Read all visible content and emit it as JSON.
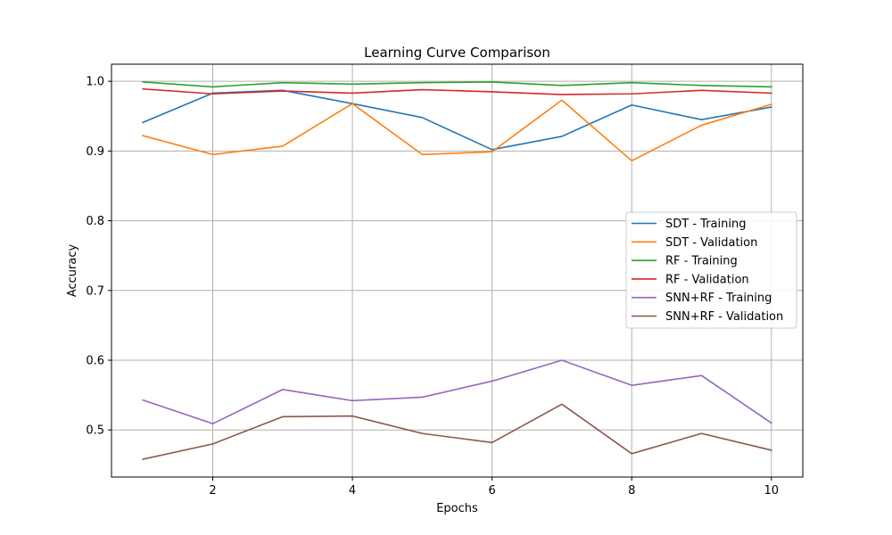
{
  "chart_data": {
    "type": "line",
    "title": "Learning Curve Comparison",
    "xlabel": "Epochs",
    "ylabel": "Accuracy",
    "x": [
      1,
      2,
      3,
      4,
      5,
      6,
      7,
      8,
      9,
      10
    ],
    "xlim": [
      0.55,
      10.45
    ],
    "ylim": [
      0.4325,
      1.0245
    ],
    "xticks": [
      2,
      4,
      6,
      8,
      10
    ],
    "yticks": [
      0.5,
      0.6,
      0.7,
      0.8,
      0.9,
      1.0
    ],
    "xtick_labels": [
      "2",
      "4",
      "6",
      "8",
      "10"
    ],
    "ytick_labels": [
      "0.5",
      "0.6",
      "0.7",
      "0.8",
      "0.9",
      "1.0"
    ],
    "grid": true,
    "legend_position": "center-right",
    "series": [
      {
        "name": "SDT - Training",
        "color": "#1f77b4",
        "values": [
          0.941,
          0.983,
          0.987,
          0.968,
          0.948,
          0.902,
          0.921,
          0.966,
          0.945,
          0.963
        ]
      },
      {
        "name": "SDT - Validation",
        "color": "#ff7f0e",
        "values": [
          0.922,
          0.895,
          0.907,
          0.968,
          0.895,
          0.899,
          0.973,
          0.886,
          0.937,
          0.967
        ]
      },
      {
        "name": "RF - Training",
        "color": "#2ca02c",
        "values": [
          0.999,
          0.992,
          0.998,
          0.996,
          0.998,
          0.999,
          0.994,
          0.998,
          0.994,
          0.992
        ]
      },
      {
        "name": "RF - Validation",
        "color": "#d62728",
        "values": [
          0.989,
          0.982,
          0.986,
          0.983,
          0.988,
          0.985,
          0.981,
          0.982,
          0.987,
          0.983
        ]
      },
      {
        "name": "SNN+RF - Training",
        "color": "#9467bd",
        "values": [
          0.543,
          0.509,
          0.558,
          0.542,
          0.547,
          0.57,
          0.6,
          0.564,
          0.578,
          0.51
        ]
      },
      {
        "name": "SNN+RF - Validation",
        "color": "#8c564b",
        "values": [
          0.458,
          0.48,
          0.519,
          0.52,
          0.495,
          0.482,
          0.537,
          0.466,
          0.495,
          0.471
        ]
      }
    ]
  }
}
